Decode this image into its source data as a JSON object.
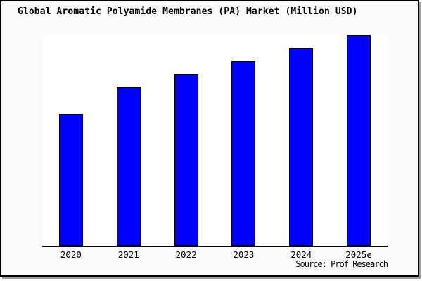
{
  "chart_data": {
    "type": "bar",
    "title": "Global Aromatic Polyamide Membranes (PA) Market (Million USD)",
    "categories": [
      "2020",
      "2021",
      "2022",
      "2023",
      "2024",
      "2025e"
    ],
    "values": [
      188,
      226,
      244,
      263,
      281,
      300
    ],
    "ylim": [
      0,
      300
    ],
    "xlabel": "",
    "ylabel": "",
    "grid": false,
    "legend": "none",
    "y_axis_labeled": false,
    "values_note": "y-axis has no ticks or labels; values are relative bar heights scaled so the tallest bar (2025e) = 300",
    "bar_color": "#0000ff",
    "bar_border_color": "#000000",
    "source": "Source: Prof Research"
  },
  "colors": {
    "figure_background": "#fafafa",
    "plot_background": "#ffffff",
    "panel_border": "#000000",
    "panel_shadow": "#9e9e9e",
    "axis_line": "#000000",
    "text": "#000000"
  }
}
